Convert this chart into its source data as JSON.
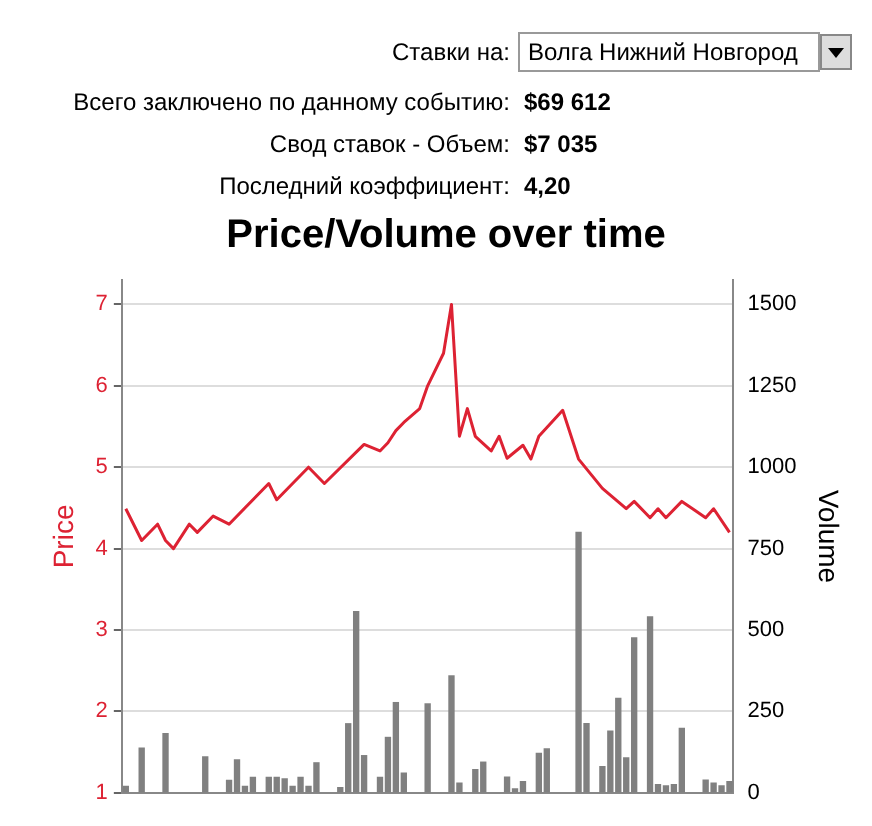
{
  "chart_data": {
    "type": "bar",
    "title": "Price/Volume over time",
    "ylabel": "Price",
    "y2label": "Volume",
    "annotations": [
      "Ставки на:",
      "Волга Нижний Новгород",
      "Всего заключено по данному событию:",
      "$69 612",
      "Свод ставок - Объем:",
      "$7 035",
      "Последний коэффициент:",
      "4,20"
    ],
    "categories": [
      null,
      null,
      null,
      null,
      null,
      null,
      null,
      null,
      null,
      null,
      null,
      null,
      null,
      null,
      null,
      null,
      null,
      null,
      null,
      null,
      null,
      null,
      null,
      null,
      null,
      null,
      null,
      null,
      null,
      null,
      null,
      null,
      null,
      null,
      null,
      null,
      null,
      null,
      null,
      null,
      null,
      null,
      null,
      null,
      null,
      null,
      null,
      null,
      null,
      null,
      null,
      null,
      null,
      null,
      null,
      null,
      null,
      null,
      null,
      null,
      null,
      null,
      null,
      null,
      null,
      null,
      null,
      null,
      null,
      null,
      null,
      null,
      null,
      null,
      null,
      null,
      null
    ],
    "series": [
      {
        "type": "line",
        "color": "#dd2233",
        "values": [
          4.49,
          null,
          4.1,
          null,
          4.3,
          4.1,
          4.0,
          null,
          4.3,
          4.2,
          null,
          4.4,
          null,
          4.3,
          null,
          null,
          null,
          null,
          4.8,
          4.6,
          null,
          null,
          null,
          5.0,
          null,
          4.8,
          null,
          null,
          null,
          null,
          5.28,
          null,
          5.2,
          5.3,
          5.45,
          5.55,
          null,
          5.72,
          6.0,
          null,
          6.4,
          7.0,
          5.38,
          5.72,
          5.38,
          null,
          5.2,
          5.38,
          5.11,
          null,
          5.27,
          5.1,
          5.38,
          null,
          null,
          5.7,
          null,
          5.1,
          null,
          null,
          4.74,
          null,
          null,
          4.49,
          4.58,
          null,
          4.38,
          4.49,
          4.38,
          null,
          4.58,
          null,
          null,
          4.38,
          4.49,
          null,
          4.2
        ]
      },
      {
        "axis": "y2",
        "color": "#808080",
        "values": [
          22,
          null,
          139,
          null,
          null,
          184,
          null,
          null,
          null,
          null,
          112,
          null,
          null,
          40,
          103,
          22,
          49,
          null,
          49,
          49,
          45,
          22,
          49,
          22,
          94,
          null,
          null,
          18,
          214,
          558,
          116,
          null,
          49,
          172,
          279,
          62,
          null,
          null,
          275,
          null,
          null,
          361,
          32,
          null,
          73,
          96,
          null,
          null,
          50,
          14,
          36,
          null,
          123,
          137,
          null,
          null,
          null,
          802,
          214,
          null,
          82,
          191,
          292,
          109,
          478,
          null,
          542,
          27,
          23,
          27,
          200,
          null,
          null,
          41,
          32,
          23,
          36
        ]
      }
    ],
    "ylim": [
      1,
      7.3
    ],
    "yticks": [
      1,
      2,
      3,
      4,
      5,
      6,
      7
    ],
    "y2lim": [
      0,
      1575
    ],
    "y2ticks": [
      0,
      250,
      500,
      750,
      1000,
      1250,
      1500
    ],
    "grid": "y",
    "legend": false,
    "marker": "none",
    "line_style": "solid",
    "tick_labels": "y"
  }
}
